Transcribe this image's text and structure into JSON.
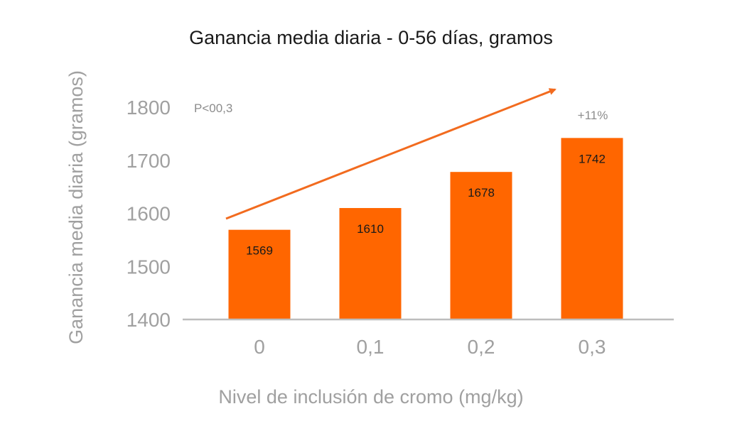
{
  "chart_data": {
    "type": "bar",
    "title": "Ganancia media diaria - 0-56 días, gramos",
    "xlabel": "Nivel de inclusión de cromo (mg/kg)",
    "ylabel": "Ganancia media diaria (gramos)",
    "categories": [
      "0",
      "0,1",
      "0,2",
      "0,3"
    ],
    "values": [
      1569,
      1610,
      1678,
      1742
    ],
    "value_labels": [
      "1569",
      "1610",
      "1678",
      "1742"
    ],
    "ylim": [
      1400,
      1800
    ],
    "yticks": [
      1400,
      1500,
      1600,
      1700,
      1800
    ],
    "ytick_labels": [
      "1400",
      "1500",
      "1600",
      "1700",
      "1800"
    ],
    "grid": false,
    "bar_color": "#FF6600",
    "arrow_color": "#F26B1F",
    "annotations": {
      "p_value": "P<00,3",
      "increase": "+11%"
    }
  }
}
